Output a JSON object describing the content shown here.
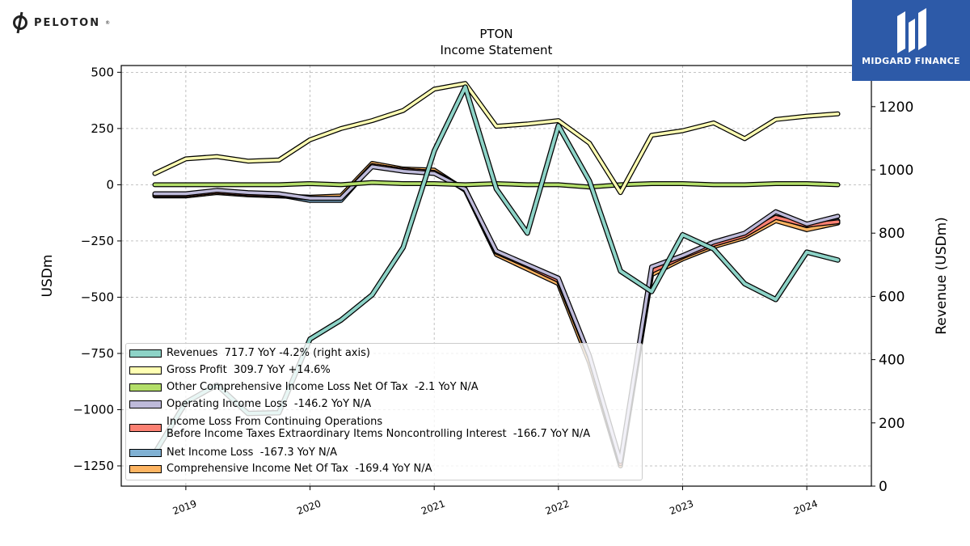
{
  "brand": {
    "name": "PELOTON",
    "tm": "®",
    "icon": "peloton-logo-icon"
  },
  "badge": {
    "name": "MIDGARD FINANCE",
    "icon": "midgard-logo-icon",
    "color": "#2d5aa8"
  },
  "chart_data": {
    "type": "line",
    "title": "PTON",
    "subtitle": "Income Statement",
    "ylabel_left": "USDm",
    "ylabel_right": "Revenue (USDm)",
    "ylim_left": [
      -1340,
      530
    ],
    "ylim_right": [
      0,
      1330
    ],
    "yticks_left": [
      500,
      250,
      0,
      -250,
      -500,
      -750,
      -1000,
      -1250
    ],
    "ytick_labels_left": [
      "500",
      "250",
      "0",
      "−250",
      "−500",
      "−750",
      "−1000",
      "−1250"
    ],
    "yticks_right": [
      0,
      200,
      400,
      600,
      800,
      1000,
      1200
    ],
    "ytick_labels_right": [
      "0",
      "200",
      "400",
      "600",
      "800",
      "1000",
      "1200"
    ],
    "xlim": [
      2018.48,
      2024.52
    ],
    "xticks": [
      2019,
      2020,
      2021,
      2022,
      2023,
      2024
    ],
    "xtick_labels": [
      "2019",
      "2020",
      "2021",
      "2022",
      "2023",
      "2024"
    ],
    "grid": true,
    "legend_position": "lower-left",
    "x": [
      2018.75,
      2019.0,
      2019.25,
      2019.5,
      2019.75,
      2020.0,
      2020.25,
      2020.5,
      2020.75,
      2021.0,
      2021.25,
      2021.5,
      2021.75,
      2022.0,
      2022.25,
      2022.5,
      2022.75,
      2023.0,
      2023.25,
      2023.5,
      2023.75,
      2024.0,
      2024.25
    ],
    "series": [
      {
        "name": "Comprehensive Income Net Of Tax",
        "legend": "Comprehensive Income Net Of Tax  -169.4 YoY N/A",
        "axis": "left",
        "color": "#fdb462",
        "width": 3.5,
        "values": [
          -50,
          -50,
          -35,
          -45,
          -50,
          -55,
          -50,
          95,
          70,
          65,
          -25,
          -310,
          -375,
          -440,
          -790,
          -1250,
          -400,
          -330,
          -275,
          -235,
          -160,
          -200,
          -170
        ]
      },
      {
        "name": "Net Income Loss",
        "legend": "Net Income Loss  -167.3 YoY N/A",
        "axis": "left",
        "color": "#80b1d3",
        "width": 3.5,
        "values": [
          -45,
          -45,
          -30,
          -40,
          -45,
          -70,
          -70,
          85,
          65,
          55,
          -20,
          -300,
          -360,
          -425,
          -760,
          -1240,
          -385,
          -320,
          -265,
          -225,
          -145,
          -180,
          -160
        ]
      },
      {
        "name": "Income Loss From Continuing Operations Before Income Taxes Extraordinary Items Noncontrolling Interest",
        "legend": "Income Loss From Continuing Operations\nBefore Income Taxes Extraordinary Items Noncontrolling Interest  -166.7 YoY N/A",
        "axis": "left",
        "color": "#fb8072",
        "width": 3.5,
        "values": [
          -45,
          -45,
          -30,
          -40,
          -45,
          -60,
          -60,
          85,
          65,
          55,
          -20,
          -300,
          -360,
          -425,
          -765,
          -1240,
          -385,
          -320,
          -265,
          -225,
          -145,
          -180,
          -165
        ]
      },
      {
        "name": "Operating Income Loss",
        "legend": "Operating Income Loss  -146.2 YoY N/A",
        "axis": "left",
        "color": "#bebada",
        "width": 3.5,
        "values": [
          -40,
          -40,
          -25,
          -35,
          -40,
          -60,
          -60,
          80,
          60,
          50,
          -20,
          -295,
          -355,
          -415,
          -760,
          -1230,
          -365,
          -315,
          -255,
          -215,
          -120,
          -175,
          -140
        ]
      },
      {
        "name": "Other Comprehensive Income Loss Net Of Tax",
        "legend": "Other Comprehensive Income Loss Net Of Tax  -2.1 YoY N/A",
        "axis": "left",
        "color": "#b3de69",
        "width": 3.5,
        "values": [
          0,
          0,
          0,
          0,
          0,
          5,
          0,
          10,
          5,
          5,
          0,
          5,
          0,
          0,
          -10,
          0,
          5,
          5,
          0,
          0,
          5,
          5,
          0
        ]
      },
      {
        "name": "Gross Profit",
        "legend": "Gross Profit  309.7 YoY +14.6%",
        "axis": "left",
        "color": "#ffffb3",
        "width": 3.5,
        "values": [
          50,
          115,
          125,
          105,
          110,
          200,
          250,
          285,
          330,
          425,
          450,
          260,
          270,
          285,
          185,
          -35,
          220,
          240,
          275,
          205,
          290,
          305,
          315
        ]
      },
      {
        "name": "Revenues",
        "legend": "Revenues  717.7 YoY -4.2% (right axis)",
        "axis": "right",
        "color": "#8dd3c7",
        "width": 4,
        "values": [
          105,
          265,
          320,
          230,
          232,
          465,
          525,
          605,
          755,
          1060,
          1262,
          940,
          800,
          1140,
          965,
          680,
          615,
          795,
          750,
          640,
          590,
          740,
          715
        ]
      }
    ]
  }
}
